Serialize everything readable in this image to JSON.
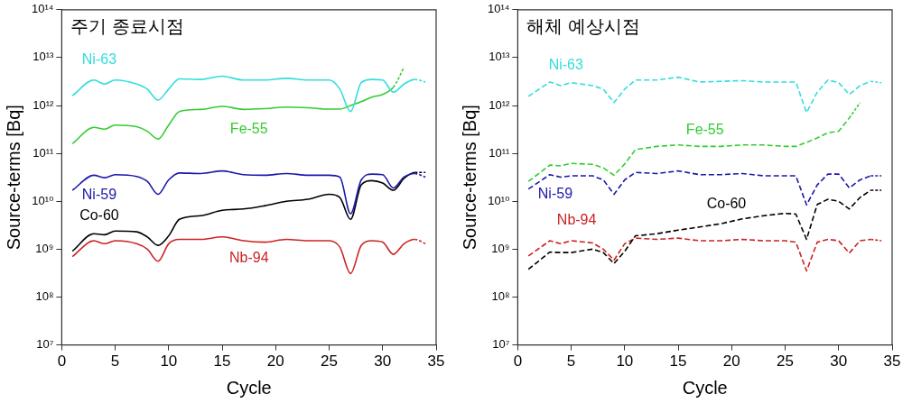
{
  "chart_data": [
    {
      "type": "line",
      "title": "주기 종료시점",
      "xlabel": "Cycle",
      "ylabel": "Source-terms [Bq]",
      "log": "y",
      "grid": false,
      "legend": false,
      "marker": "none",
      "line_style": "solid",
      "xlim": [
        0,
        35
      ],
      "xticks": [
        0,
        5,
        10,
        15,
        20,
        25,
        30,
        35
      ],
      "ylim": [
        10000000.0,
        100000000000000.0
      ],
      "yticks": [
        {
          "value": 10000000.0,
          "label": "10⁷"
        },
        {
          "value": 100000000.0,
          "label": "10⁸"
        },
        {
          "value": 1000000000.0,
          "label": "10⁹"
        },
        {
          "value": 10000000000.0,
          "label": "10¹⁰"
        },
        {
          "value": 100000000000.0,
          "label": "10¹¹"
        },
        {
          "value": 1000000000000.0,
          "label": "10¹²"
        },
        {
          "value": 10000000000000.0,
          "label": "10¹³"
        },
        {
          "value": 100000000000000.0,
          "label": "10¹⁴"
        }
      ],
      "x": [
        1,
        3,
        4,
        5,
        7,
        8,
        9,
        10,
        11,
        13,
        15,
        17,
        19,
        21,
        23,
        25,
        26,
        27,
        28,
        29,
        30,
        31,
        32,
        33,
        34
      ],
      "series": [
        {
          "name": "Ni-63",
          "color": "#33dddd",
          "values": [
            1600000000000.0,
            3400000000000.0,
            2800000000000.0,
            3400000000000.0,
            2800000000000.0,
            2200000000000.0,
            1300000000000.0,
            2200000000000.0,
            3600000000000.0,
            3500000000000.0,
            4100000000000.0,
            3400000000000.0,
            3400000000000.0,
            3700000000000.0,
            3400000000000.0,
            3400000000000.0,
            2200000000000.0,
            750000000000.0,
            3000000000000.0,
            3500000000000.0,
            3400000000000.0,
            1900000000000.0,
            2800000000000.0,
            3500000000000.0,
            3100000000000.0
          ]
        },
        {
          "name": "Fe-55",
          "color": "#33cc33",
          "x": [
            1,
            3,
            4,
            5,
            7,
            8,
            9,
            10,
            11,
            13,
            15,
            17,
            19,
            21,
            23,
            25,
            26,
            27,
            28,
            29,
            30,
            31,
            32
          ],
          "values": [
            160000000000.0,
            350000000000.0,
            320000000000.0,
            390000000000.0,
            360000000000.0,
            290000000000.0,
            200000000000.0,
            390000000000.0,
            750000000000.0,
            830000000000.0,
            960000000000.0,
            830000000000.0,
            860000000000.0,
            930000000000.0,
            900000000000.0,
            840000000000.0,
            840000000000.0,
            1000000000000.0,
            1200000000000.0,
            1500000000000.0,
            1700000000000.0,
            2400000000000.0,
            6300000000000.0
          ]
        },
        {
          "name": "Ni-59",
          "color": "#1a1aaa",
          "values": [
            17000000000.0,
            35000000000.0,
            31000000000.0,
            36000000000.0,
            33000000000.0,
            26000000000.0,
            14000000000.0,
            28000000000.0,
            39000000000.0,
            38000000000.0,
            43000000000.0,
            36000000000.0,
            35000000000.0,
            38000000000.0,
            35000000000.0,
            35000000000.0,
            32000000000.0,
            5500000000.0,
            28000000000.0,
            37000000000.0,
            36000000000.0,
            19000000000.0,
            32000000000.0,
            38000000000.0,
            32000000000.0
          ]
        },
        {
          "name": "Co-60",
          "color": "#000000",
          "values": [
            910000000.0,
            2100000000.0,
            2000000000.0,
            2400000000.0,
            2300000000.0,
            1800000000.0,
            1200000000.0,
            1900000000.0,
            4200000000.0,
            5000000000.0,
            6500000000.0,
            6900000000.0,
            8100000000.0,
            10000000000.0,
            11000000000.0,
            14000000000.0,
            12000000000.0,
            4200000000.0,
            22000000000.0,
            27000000000.0,
            24000000000.0,
            17000000000.0,
            30000000000.0,
            40000000000.0,
            40000000000.0
          ]
        },
        {
          "name": "Nb-94",
          "color": "#cc2222",
          "values": [
            700000000.0,
            1500000000.0,
            1300000000.0,
            1500000000.0,
            1300000000.0,
            1000000000.0,
            560000000.0,
            1300000000.0,
            1600000000.0,
            1600000000.0,
            1800000000.0,
            1500000000.0,
            1400000000.0,
            1600000000.0,
            1500000000.0,
            1500000000.0,
            1100000000.0,
            310000000.0,
            1200000000.0,
            1500000000.0,
            1400000000.0,
            780000000.0,
            1300000000.0,
            1600000000.0,
            1300000000.0
          ]
        }
      ]
    },
    {
      "type": "line",
      "title": "해체 예상시점",
      "xlabel": "Cycle",
      "ylabel": "Source-terms [Bq]",
      "log": "y",
      "grid": false,
      "legend": false,
      "marker": "none",
      "line_style": "dashed",
      "xlim": [
        0,
        35
      ],
      "xticks": [
        0,
        5,
        10,
        15,
        20,
        25,
        30,
        35
      ],
      "ylim": [
        10000000.0,
        100000000000000.0
      ],
      "yticks": [
        {
          "value": 10000000.0,
          "label": "10⁷"
        },
        {
          "value": 100000000.0,
          "label": "10⁸"
        },
        {
          "value": 1000000000.0,
          "label": "10⁹"
        },
        {
          "value": 10000000000.0,
          "label": "10¹⁰"
        },
        {
          "value": 100000000000.0,
          "label": "10¹¹"
        },
        {
          "value": 1000000000000.0,
          "label": "10¹²"
        },
        {
          "value": 10000000000000.0,
          "label": "10¹³"
        },
        {
          "value": 100000000000000.0,
          "label": "10¹⁴"
        }
      ],
      "x": [
        1,
        3,
        4,
        5,
        7,
        8,
        9,
        10,
        11,
        13,
        15,
        17,
        19,
        21,
        23,
        25,
        26,
        27,
        28,
        29,
        30,
        31,
        32,
        33,
        34
      ],
      "series": [
        {
          "name": "Ni-63",
          "color": "#33dddd",
          "values": [
            1550000000000.0,
            3100000000000.0,
            2600000000000.0,
            3000000000000.0,
            2600000000000.0,
            2200000000000.0,
            1150000000000.0,
            2200000000000.0,
            3400000000000.0,
            3400000000000.0,
            3900000000000.0,
            3100000000000.0,
            3200000000000.0,
            3300000000000.0,
            3100000000000.0,
            3100000000000.0,
            3100000000000.0,
            710000000000.0,
            1900000000000.0,
            3400000000000.0,
            3000000000000.0,
            1700000000000.0,
            2600000000000.0,
            3200000000000.0,
            3000000000000.0
          ]
        },
        {
          "name": "Fe-55",
          "color": "#33cc33",
          "x": [
            1,
            3,
            4,
            5,
            7,
            8,
            9,
            10,
            11,
            13,
            15,
            17,
            19,
            21,
            23,
            25,
            26,
            27,
            28,
            29,
            30,
            31,
            32
          ],
          "values": [
            26000000000.0,
            57000000000.0,
            55000000000.0,
            62000000000.0,
            59000000000.0,
            50000000000.0,
            35000000000.0,
            60000000000.0,
            120000000000.0,
            140000000000.0,
            150000000000.0,
            140000000000.0,
            140000000000.0,
            150000000000.0,
            150000000000.0,
            140000000000.0,
            140000000000.0,
            170000000000.0,
            210000000000.0,
            270000000000.0,
            290000000000.0,
            550000000000.0,
            1150000000000.0
          ]
        },
        {
          "name": "Ni-59",
          "color": "#1a1aaa",
          "values": [
            18000000000.0,
            36000000000.0,
            32000000000.0,
            34000000000.0,
            34000000000.0,
            28000000000.0,
            14000000000.0,
            28000000000.0,
            40000000000.0,
            38000000000.0,
            43000000000.0,
            36000000000.0,
            36000000000.0,
            38000000000.0,
            34000000000.0,
            34000000000.0,
            34000000000.0,
            8400000000.0,
            22000000000.0,
            37000000000.0,
            37000000000.0,
            19000000000.0,
            28000000000.0,
            34000000000.0,
            34000000000.0
          ]
        },
        {
          "name": "Co-60",
          "color": "#000000",
          "values": [
            380000000.0,
            870000000.0,
            850000000.0,
            850000000.0,
            1000000000.0,
            850000000.0,
            500000000.0,
            900000000.0,
            1900000000.0,
            2100000000.0,
            2500000000.0,
            2900000000.0,
            3400000000.0,
            4300000000.0,
            5000000000.0,
            5600000000.0,
            5400000000.0,
            1600000000.0,
            8600000000.0,
            11000000000.0,
            10000000000.0,
            6900000000.0,
            12000000000.0,
            17000000000.0,
            17000000000.0
          ]
        },
        {
          "name": "Nb-94",
          "color": "#cc2222",
          "values": [
            720000000.0,
            1500000000.0,
            1300000000.0,
            1500000000.0,
            1350000000.0,
            1000000000.0,
            590000000.0,
            1300000000.0,
            1700000000.0,
            1600000000.0,
            1700000000.0,
            1500000000.0,
            1500000000.0,
            1600000000.0,
            1500000000.0,
            1500000000.0,
            1400000000.0,
            350000000.0,
            1400000000.0,
            1600000000.0,
            1500000000.0,
            830000000.0,
            1500000000.0,
            1600000000.0,
            1500000000.0
          ]
        }
      ]
    }
  ]
}
